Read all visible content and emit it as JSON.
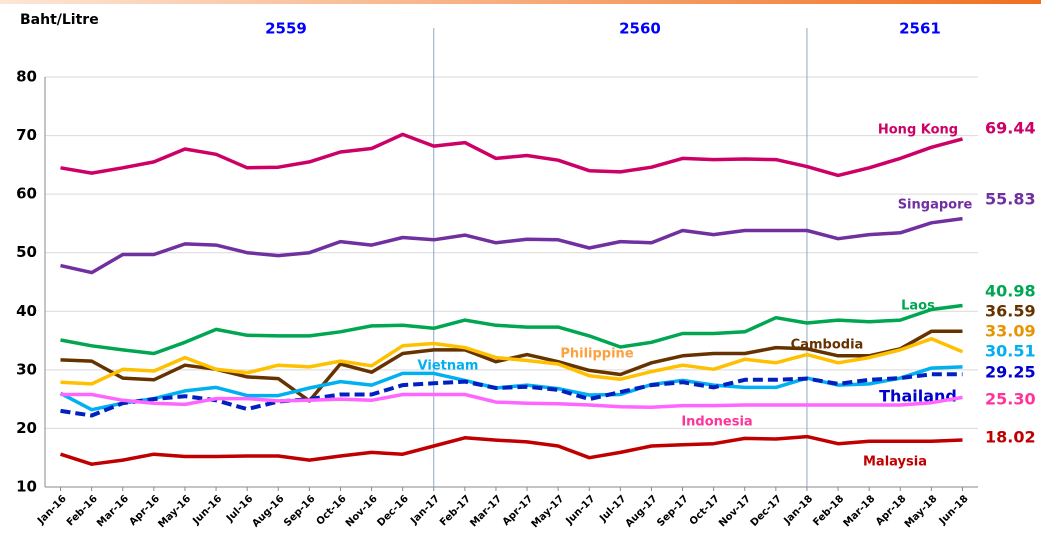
{
  "chart_data": {
    "type": "line",
    "y_label": "Baht/Litre",
    "annotations": [
      "2559",
      "2560",
      "2561"
    ],
    "categories": [
      "Jan-16",
      "Feb-16",
      "Mar-16",
      "Apr-16",
      "May-16",
      "Jun-16",
      "Jul-16",
      "Aug-16",
      "Sep-16",
      "Oct-16",
      "Nov-16",
      "Dec-16",
      "Jan-17",
      "Feb-17",
      "Mar-17",
      "Apr-17",
      "May-17",
      "Jun-17",
      "Jul-17",
      "Aug-17",
      "Sep-17",
      "Oct-17",
      "Nov-17",
      "Dec-17",
      "Jan-18",
      "Feb-18",
      "Mar-18",
      "Apr-18",
      "May-18",
      "Jun-18"
    ],
    "ylim": [
      10,
      80
    ],
    "yticks": [
      10,
      20,
      30,
      40,
      50,
      60,
      70,
      80
    ],
    "grid": true,
    "series": [
      {
        "name": "Hong Kong",
        "color": "#cc0066",
        "dashed": false,
        "value_labels_end": "69.44",
        "values": [
          64.5,
          63.6,
          64.5,
          65.5,
          67.7,
          66.8,
          64.5,
          64.6,
          65.5,
          67.2,
          67.8,
          70.2,
          68.2,
          68.8,
          66.1,
          66.6,
          65.8,
          64,
          63.8,
          64.6,
          66.1,
          65.9,
          66,
          65.9,
          64.7,
          63.2,
          64.5,
          66.1,
          68,
          69.44
        ]
      },
      {
        "name": "Singapore",
        "color": "#7030a0",
        "dashed": false,
        "value_labels_end": "55.83",
        "values": [
          47.8,
          46.6,
          49.7,
          49.7,
          51.5,
          51.3,
          50,
          49.5,
          50,
          51.9,
          51.3,
          52.6,
          52.2,
          53,
          51.7,
          52.3,
          52.2,
          50.8,
          51.9,
          51.7,
          53.8,
          53.1,
          53.8,
          53.8,
          53.8,
          52.4,
          53.1,
          53.4,
          55.1,
          55.83
        ]
      },
      {
        "name": "Laos",
        "color": "#00a651",
        "dashed": false,
        "value_labels_end": "40.98",
        "values": [
          35.1,
          34.1,
          33.4,
          32.8,
          34.7,
          36.9,
          35.9,
          35.8,
          35.8,
          36.5,
          37.5,
          37.6,
          37.1,
          38.5,
          37.6,
          37.3,
          37.3,
          35.8,
          33.9,
          34.7,
          36.2,
          36.2,
          36.5,
          38.9,
          38,
          38.5,
          38.2,
          38.5,
          40.3,
          40.98
        ]
      },
      {
        "name": "Cambodia",
        "color": "#663300",
        "dashed": false,
        "value_labels_end": "36.59",
        "values": [
          31.7,
          31.5,
          28.6,
          28.3,
          30.8,
          30.1,
          28.8,
          28.5,
          24.7,
          31,
          29.6,
          32.8,
          33.4,
          33.4,
          31.4,
          32.6,
          31.4,
          29.9,
          29.2,
          31.2,
          32.4,
          32.8,
          32.8,
          33.8,
          33.6,
          32.4,
          32.4,
          33.6,
          36.59,
          36.59
        ]
      },
      {
        "name": "Philippine",
        "color": "#ffc000",
        "dashed": false,
        "value_labels_end": "33.09",
        "values": [
          27.9,
          27.6,
          30.1,
          29.8,
          32.1,
          30.1,
          29.5,
          30.8,
          30.5,
          31.5,
          30.7,
          34.1,
          34.5,
          33.8,
          32.1,
          31.6,
          31,
          29,
          28.4,
          29.7,
          30.8,
          30.1,
          31.8,
          31.2,
          32.6,
          31.2,
          32.1,
          33.4,
          35.3,
          33.09
        ]
      },
      {
        "name": "Vietnam",
        "color": "#00b0f0",
        "dashed": false,
        "value_labels_end": "30.51",
        "values": [
          26,
          23.2,
          24.3,
          25.1,
          26.4,
          27,
          25.6,
          25.6,
          26.9,
          28,
          27.4,
          29.4,
          29.4,
          28.2,
          26.9,
          27.4,
          26.8,
          25.7,
          25.8,
          27.5,
          28.2,
          27.4,
          27,
          27,
          28.6,
          27.4,
          27.6,
          28.6,
          30.3,
          30.51
        ]
      },
      {
        "name": "Thailand",
        "color": "#0020c0",
        "dashed": true,
        "value_labels_end": "29.25",
        "values": [
          23,
          22.2,
          24.3,
          25,
          25.5,
          24.8,
          23.3,
          24.6,
          25,
          25.8,
          25.8,
          27.4,
          27.7,
          28,
          26.9,
          27.1,
          26.6,
          25,
          26.2,
          27.4,
          27.9,
          27,
          28.3,
          28.3,
          28.5,
          27.6,
          28.3,
          28.6,
          29.25,
          29.25
        ]
      },
      {
        "name": "Indonesia",
        "color": "#ff66ff",
        "dashed": false,
        "value_labels_end": "25.30",
        "values": [
          25.8,
          25.8,
          24.8,
          24.3,
          24.1,
          25.1,
          25.1,
          24.7,
          24.8,
          25,
          24.8,
          25.8,
          25.8,
          25.8,
          24.5,
          24.3,
          24.2,
          24,
          23.7,
          23.6,
          23.9,
          23.9,
          24,
          24,
          24,
          24,
          24,
          24,
          24.4,
          25.3
        ]
      },
      {
        "name": "Malaysia",
        "color": "#c00000",
        "dashed": false,
        "value_labels_end": "18.02",
        "values": [
          15.6,
          13.9,
          14.6,
          15.6,
          15.2,
          15.2,
          15.3,
          15.3,
          14.6,
          15.3,
          15.9,
          15.6,
          17,
          18.4,
          18,
          17.7,
          17,
          15,
          15.9,
          17,
          17.2,
          17.4,
          18.3,
          18.2,
          18.6,
          17.4,
          17.8,
          17.8,
          17.8,
          18.02
        ]
      }
    ]
  }
}
